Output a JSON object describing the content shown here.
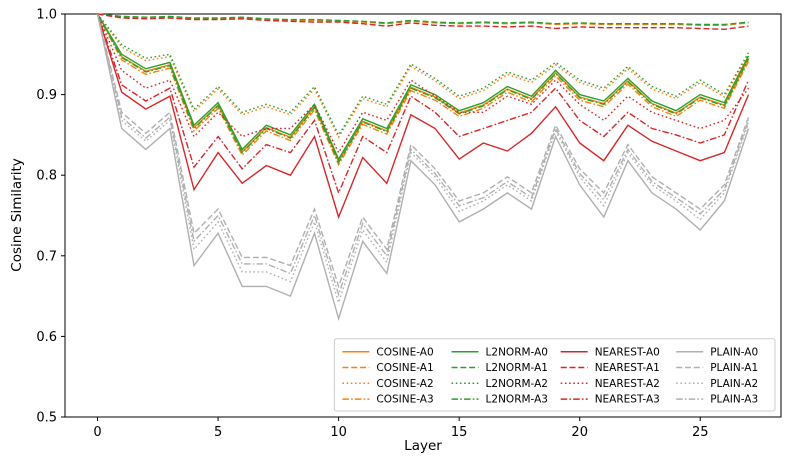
{
  "figure": {
    "background": "#ffffff",
    "axis_color": "#000000",
    "legend_border_color": "#cccccc"
  },
  "chart_data": {
    "type": "line",
    "title": "",
    "xlabel": "Layer",
    "ylabel": "Cosine Similarity",
    "xlim": [
      -1.35,
      28.35
    ],
    "ylim": [
      0.5,
      1.0
    ],
    "x_ticks": [
      0,
      5,
      10,
      15,
      20,
      25
    ],
    "y_ticks": [
      0.5,
      0.6,
      0.7,
      0.8,
      0.9,
      1.0
    ],
    "grid": false,
    "legend_position": "lower right",
    "legend_columns": 4,
    "x": [
      0,
      1,
      2,
      3,
      4,
      5,
      6,
      7,
      8,
      9,
      10,
      11,
      12,
      13,
      14,
      15,
      16,
      17,
      18,
      19,
      20,
      21,
      22,
      23,
      24,
      25,
      26,
      27
    ],
    "series": [
      {
        "name": "COSINE-A0",
        "color": "#ff7f0e",
        "linestyle": "solid",
        "values": [
          1.0,
          0.947,
          0.929,
          0.937,
          0.859,
          0.887,
          0.829,
          0.859,
          0.847,
          0.885,
          0.817,
          0.867,
          0.855,
          0.909,
          0.897,
          0.877,
          0.887,
          0.907,
          0.895,
          0.927,
          0.897,
          0.889,
          0.917,
          0.889,
          0.877,
          0.897,
          0.887,
          0.945
        ]
      },
      {
        "name": "COSINE-A1",
        "color": "#ff7f0e",
        "linestyle": "dashed",
        "values": [
          1.0,
          0.996,
          0.995,
          0.996,
          0.994,
          0.994,
          0.995,
          0.993,
          0.992,
          0.992,
          0.991,
          0.99,
          0.988,
          0.991,
          0.989,
          0.988,
          0.989,
          0.988,
          0.989,
          0.987,
          0.988,
          0.987,
          0.987,
          0.987,
          0.987,
          0.986,
          0.986,
          0.989
        ]
      },
      {
        "name": "COSINE-A2",
        "color": "#ff7f0e",
        "linestyle": "dotted",
        "values": [
          1.0,
          0.959,
          0.942,
          0.947,
          0.879,
          0.907,
          0.875,
          0.885,
          0.875,
          0.907,
          0.847,
          0.895,
          0.885,
          0.935,
          0.917,
          0.895,
          0.905,
          0.925,
          0.915,
          0.937,
          0.915,
          0.905,
          0.932,
          0.907,
          0.895,
          0.915,
          0.897,
          0.949
        ]
      },
      {
        "name": "COSINE-A3",
        "color": "#ff7f0e",
        "linestyle": "dashdot",
        "values": [
          1.0,
          0.943,
          0.925,
          0.933,
          0.855,
          0.883,
          0.825,
          0.855,
          0.843,
          0.881,
          0.813,
          0.863,
          0.851,
          0.905,
          0.893,
          0.873,
          0.883,
          0.903,
          0.891,
          0.923,
          0.893,
          0.885,
          0.913,
          0.885,
          0.873,
          0.893,
          0.883,
          0.941
        ]
      },
      {
        "name": "L2NORM-A0",
        "color": "#2ca02c",
        "linestyle": "solid",
        "values": [
          1.0,
          0.95,
          0.932,
          0.94,
          0.862,
          0.89,
          0.832,
          0.862,
          0.85,
          0.888,
          0.82,
          0.87,
          0.858,
          0.912,
          0.9,
          0.88,
          0.89,
          0.91,
          0.898,
          0.93,
          0.9,
          0.892,
          0.92,
          0.892,
          0.88,
          0.9,
          0.89,
          0.948
        ]
      },
      {
        "name": "L2NORM-A1",
        "color": "#2ca02c",
        "linestyle": "dashed",
        "values": [
          1.0,
          0.997,
          0.996,
          0.997,
          0.995,
          0.995,
          0.996,
          0.994,
          0.993,
          0.993,
          0.992,
          0.991,
          0.989,
          0.992,
          0.99,
          0.989,
          0.99,
          0.989,
          0.99,
          0.988,
          0.989,
          0.988,
          0.988,
          0.988,
          0.988,
          0.987,
          0.987,
          0.99
        ]
      },
      {
        "name": "L2NORM-A2",
        "color": "#2ca02c",
        "linestyle": "dotted",
        "values": [
          1.0,
          0.962,
          0.945,
          0.95,
          0.882,
          0.91,
          0.878,
          0.888,
          0.878,
          0.91,
          0.85,
          0.898,
          0.888,
          0.938,
          0.92,
          0.898,
          0.908,
          0.928,
          0.918,
          0.94,
          0.918,
          0.908,
          0.935,
          0.91,
          0.898,
          0.918,
          0.9,
          0.952
        ]
      },
      {
        "name": "L2NORM-A3",
        "color": "#2ca02c",
        "linestyle": "dashdot",
        "values": [
          1.0,
          0.946,
          0.928,
          0.936,
          0.858,
          0.886,
          0.828,
          0.858,
          0.846,
          0.884,
          0.816,
          0.866,
          0.854,
          0.908,
          0.896,
          0.876,
          0.886,
          0.906,
          0.894,
          0.926,
          0.896,
          0.888,
          0.916,
          0.888,
          0.876,
          0.896,
          0.886,
          0.944
        ]
      },
      {
        "name": "NEAREST-A0",
        "color": "#d62728",
        "linestyle": "solid",
        "values": [
          1.0,
          0.903,
          0.882,
          0.898,
          0.782,
          0.828,
          0.79,
          0.812,
          0.8,
          0.848,
          0.748,
          0.822,
          0.79,
          0.875,
          0.858,
          0.82,
          0.84,
          0.83,
          0.852,
          0.885,
          0.84,
          0.818,
          0.862,
          0.842,
          0.83,
          0.818,
          0.828,
          0.9
        ]
      },
      {
        "name": "NEAREST-A1",
        "color": "#d62728",
        "linestyle": "dashed",
        "values": [
          1.0,
          0.995,
          0.994,
          0.995,
          0.993,
          0.993,
          0.994,
          0.992,
          0.991,
          0.99,
          0.99,
          0.988,
          0.985,
          0.989,
          0.986,
          0.985,
          0.985,
          0.984,
          0.985,
          0.982,
          0.984,
          0.983,
          0.983,
          0.983,
          0.983,
          0.982,
          0.981,
          0.985
        ]
      },
      {
        "name": "NEAREST-A2",
        "color": "#d62728",
        "linestyle": "dotted",
        "values": [
          1.0,
          0.93,
          0.908,
          0.918,
          0.848,
          0.878,
          0.848,
          0.858,
          0.858,
          0.888,
          0.828,
          0.878,
          0.868,
          0.918,
          0.898,
          0.878,
          0.878,
          0.898,
          0.888,
          0.918,
          0.888,
          0.868,
          0.898,
          0.878,
          0.868,
          0.858,
          0.868,
          0.908
        ]
      },
      {
        "name": "NEAREST-A3",
        "color": "#d62728",
        "linestyle": "dashdot",
        "values": [
          1.0,
          0.912,
          0.892,
          0.908,
          0.81,
          0.848,
          0.808,
          0.838,
          0.828,
          0.868,
          0.778,
          0.848,
          0.828,
          0.898,
          0.878,
          0.848,
          0.858,
          0.868,
          0.878,
          0.908,
          0.868,
          0.848,
          0.878,
          0.858,
          0.85,
          0.84,
          0.85,
          0.918
        ]
      },
      {
        "name": "PLAIN-A0",
        "color": "#b0b0b0",
        "linestyle": "solid",
        "values": [
          1.0,
          0.858,
          0.832,
          0.858,
          0.688,
          0.728,
          0.662,
          0.662,
          0.65,
          0.728,
          0.622,
          0.718,
          0.678,
          0.818,
          0.788,
          0.742,
          0.758,
          0.778,
          0.758,
          0.848,
          0.788,
          0.748,
          0.818,
          0.778,
          0.758,
          0.732,
          0.768,
          0.858
        ]
      },
      {
        "name": "PLAIN-A1",
        "color": "#b0b0b0",
        "linestyle": "dashed",
        "values": [
          1.0,
          0.878,
          0.852,
          0.878,
          0.728,
          0.758,
          0.698,
          0.698,
          0.688,
          0.758,
          0.662,
          0.748,
          0.708,
          0.838,
          0.808,
          0.768,
          0.778,
          0.798,
          0.778,
          0.862,
          0.808,
          0.778,
          0.838,
          0.798,
          0.778,
          0.758,
          0.788,
          0.872
        ]
      },
      {
        "name": "PLAIN-A2",
        "color": "#b0b0b0",
        "linestyle": "dotted",
        "values": [
          1.0,
          0.868,
          0.842,
          0.868,
          0.708,
          0.742,
          0.68,
          0.68,
          0.668,
          0.742,
          0.642,
          0.732,
          0.692,
          0.828,
          0.798,
          0.755,
          0.768,
          0.788,
          0.768,
          0.855,
          0.798,
          0.762,
          0.828,
          0.788,
          0.768,
          0.745,
          0.778,
          0.865
        ]
      },
      {
        "name": "PLAIN-A3",
        "color": "#b0b0b0",
        "linestyle": "dashdot",
        "values": [
          1.0,
          0.872,
          0.846,
          0.872,
          0.718,
          0.75,
          0.69,
          0.69,
          0.678,
          0.75,
          0.652,
          0.74,
          0.7,
          0.832,
          0.802,
          0.762,
          0.772,
          0.792,
          0.772,
          0.858,
          0.802,
          0.77,
          0.832,
          0.792,
          0.772,
          0.752,
          0.782,
          0.868
        ]
      }
    ]
  }
}
